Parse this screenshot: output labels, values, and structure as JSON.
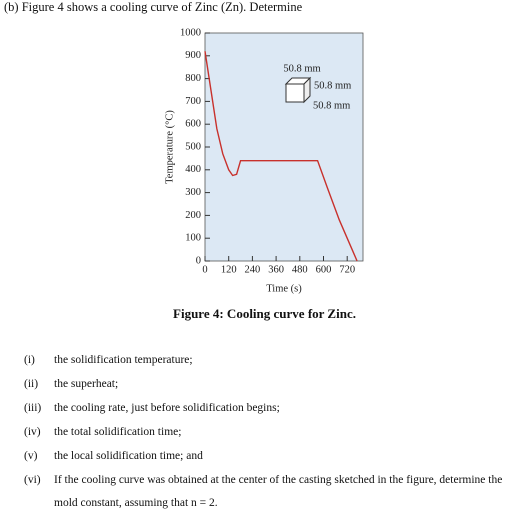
{
  "header": "(b) Figure 4 shows a cooling curve of Zinc (Zn). Determine",
  "chart_data": {
    "type": "line",
    "xlabel": "Time (s)",
    "ylabel": "Temperature (°C)",
    "x": [
      0,
      30,
      60,
      90,
      120,
      140,
      160,
      180,
      570,
      620,
      680,
      740,
      770
    ],
    "values": [
      920,
      750,
      580,
      470,
      400,
      375,
      380,
      440,
      440,
      320,
      180,
      60,
      0
    ],
    "color": "#c8312c",
    "xlim": [
      0,
      800
    ],
    "ylim": [
      0,
      1000
    ],
    "xticks": [
      0,
      120,
      240,
      360,
      480,
      600,
      720
    ],
    "yticks": [
      0,
      100,
      200,
      300,
      400,
      500,
      600,
      700,
      800,
      900,
      1000
    ],
    "annotations": [
      "50.8 mm",
      "50.8 mm",
      "50.8 mm"
    ]
  },
  "figure_caption": "Figure 4: Cooling curve for Zinc.",
  "questions": [
    {
      "label": "(i)",
      "text": "the solidification temperature;"
    },
    {
      "label": "(ii)",
      "text": "the superheat;"
    },
    {
      "label": "(iii)",
      "text": "the cooling rate, just before solidification begins;"
    },
    {
      "label": "(iv)",
      "text": "the total solidification time;"
    },
    {
      "label": "(v)",
      "text": "the local solidification time; and"
    },
    {
      "label": "(vi)",
      "text": "If the cooling curve was obtained at the center of the casting sketched in the figure, determine the mold constant, assuming that n = 2."
    }
  ]
}
